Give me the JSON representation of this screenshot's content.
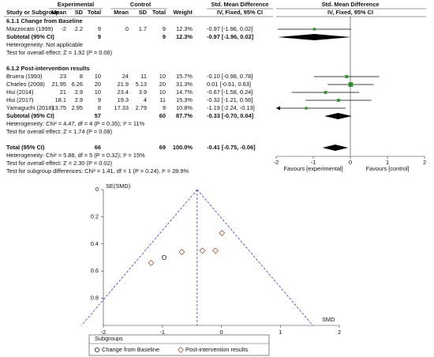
{
  "chart_data": [
    {
      "type": "forest",
      "group_headers": [
        "Experimental",
        "Control",
        "Std. Mean Difference",
        "Std. Mean Difference"
      ],
      "columns": [
        "Study or Subgroup",
        "Mean",
        "SD",
        "Total",
        "Mean",
        "SD",
        "Total",
        "Weight",
        "IV, Fixed, 95% CI",
        "IV, Fixed, 95% CI"
      ],
      "groups": [
        {
          "title": "6.1.1 Change from Baseline",
          "studies": [
            {
              "name": "Mazzocato (1999)",
              "exp": [
                -2,
                2.2,
                9
              ],
              "ctrl": [
                0,
                1.7,
                9
              ],
              "weight": 12.3,
              "weight_label": "12.3%",
              "smd": -0.97,
              "ci": [
                -1.96,
                0.02
              ],
              "ci_label": "-0.97 [-1.96, 0.02]"
            }
          ],
          "subtotal": {
            "name": "Subtotal (95% CI)",
            "exp_total": 9,
            "ctrl_total": 9,
            "weight": 12.3,
            "weight_label": "12.3%",
            "smd": -0.97,
            "ci": [
              -1.96,
              0.02
            ],
            "ci_label": "-0.97 [-1.96, 0.02]"
          },
          "heterogeneity": "Heterogeneity: Not applicable",
          "effect_test": "Test for overall effect: Z = 1.92 (P = 0.06)"
        },
        {
          "title": "6.1.2 Post-intervention results",
          "studies": [
            {
              "name": "Bruera (1993)",
              "exp": [
                23,
                8,
                10
              ],
              "ctrl": [
                24,
                11,
                10
              ],
              "weight": 15.7,
              "weight_label": "15.7%",
              "smd": -0.1,
              "ci": [
                -0.98,
                0.78
              ],
              "ci_label": "-0.10 [-0.98, 0.78]"
            },
            {
              "name": "Charles (2008)",
              "exp": [
                21.95,
                6.26,
                20
              ],
              "ctrl": [
                21.9,
                5.13,
                20
              ],
              "weight": 31.3,
              "weight_label": "31.3%",
              "smd": 0.01,
              "ci": [
                -0.61,
                0.63
              ],
              "ci_label": "0.01 [-0.61, 0.63]"
            },
            {
              "name": "Hui (2014)",
              "exp": [
                21,
                2.9,
                10
              ],
              "ctrl": [
                23.4,
                3.9,
                10
              ],
              "weight": 14.7,
              "weight_label": "14.7%",
              "smd": -0.67,
              "ci": [
                -1.58,
                0.24
              ],
              "ci_label": "-0.67 [-1.58, 0.24]"
            },
            {
              "name": "Hui (2017)",
              "exp": [
                18.1,
                2.9,
                9
              ],
              "ctrl": [
                19.3,
                4,
                11
              ],
              "weight": 15.3,
              "weight_label": "15.3%",
              "smd": -0.32,
              "ci": [
                -1.21,
                0.56
              ],
              "ci_label": "-0.32 [-1.21, 0.56]"
            },
            {
              "name": "Yamaguchi (2018)",
              "exp": [
                13.75,
                2.95,
                8
              ],
              "ctrl": [
                17.33,
                2.79,
                9
              ],
              "weight": 10.8,
              "weight_label": "10.8%",
              "smd": -1.19,
              "ci": [
                -2.24,
                -0.13
              ],
              "ci_label": "-1.19 [-2.24, -0.13]"
            }
          ],
          "subtotal": {
            "name": "Subtotal (95% CI)",
            "exp_total": 57,
            "ctrl_total": 60,
            "weight": 87.7,
            "weight_label": "87.7%",
            "smd": -0.33,
            "ci": [
              -0.7,
              0.04
            ],
            "ci_label": "-0.33 [-0.70, 0.04]"
          },
          "heterogeneity": "Heterogeneity: Chi² = 4.47, df = 4 (P = 0.35); I² = 11%",
          "effect_test": "Test for overall effect: Z = 1.74 (P = 0.08)"
        }
      ],
      "total": {
        "name": "Total (95% CI)",
        "exp_total": 66,
        "ctrl_total": 69,
        "weight": 100,
        "weight_label": "100.0%",
        "smd": -0.41,
        "ci": [
          -0.75,
          -0.06
        ],
        "ci_label": "-0.41 [-0.75, -0.06]"
      },
      "total_heterogeneity": "Heterogeneity: Chi² = 5.88, df = 5 (P = 0.32); I² = 15%",
      "total_effect_test": "Test for overall effect: Z = 2.30 (P = 0.02)",
      "subgroup_test": "Test for subgroup differences: Chi² = 1.41, df = 1 (P = 0.24), I² = 28.9%",
      "xlim": [
        -2,
        2
      ],
      "xticks": [
        -2,
        -1,
        0,
        1,
        2
      ],
      "favours": [
        "Favours [experimental]",
        "Favours [control]"
      ],
      "square_color": "#2e9a2e"
    },
    {
      "type": "funnel",
      "ylabel": "SE(SMD)",
      "xlabel": "SMD",
      "xlim": [
        -2,
        2
      ],
      "xticks": [
        -2,
        -1,
        0,
        1,
        2
      ],
      "ylim": [
        0,
        1
      ],
      "yticks": [
        0,
        0.2,
        0.4,
        0.6,
        0.8
      ],
      "line_color": "#3a3acf",
      "legend_title": "Subgroups",
      "series": [
        {
          "name": "Change from Baseline",
          "marker": "circle",
          "color": "#222222",
          "x": [
            -0.97
          ],
          "values": [
            0.5
          ]
        },
        {
          "name": "Post-intervention results",
          "marker": "diamond",
          "color": "#a0522d",
          "x": [
            -0.1,
            0.01,
            -0.67,
            -0.32,
            -1.19
          ],
          "values": [
            0.45,
            0.32,
            0.46,
            0.45,
            0.54
          ]
        }
      ]
    }
  ]
}
